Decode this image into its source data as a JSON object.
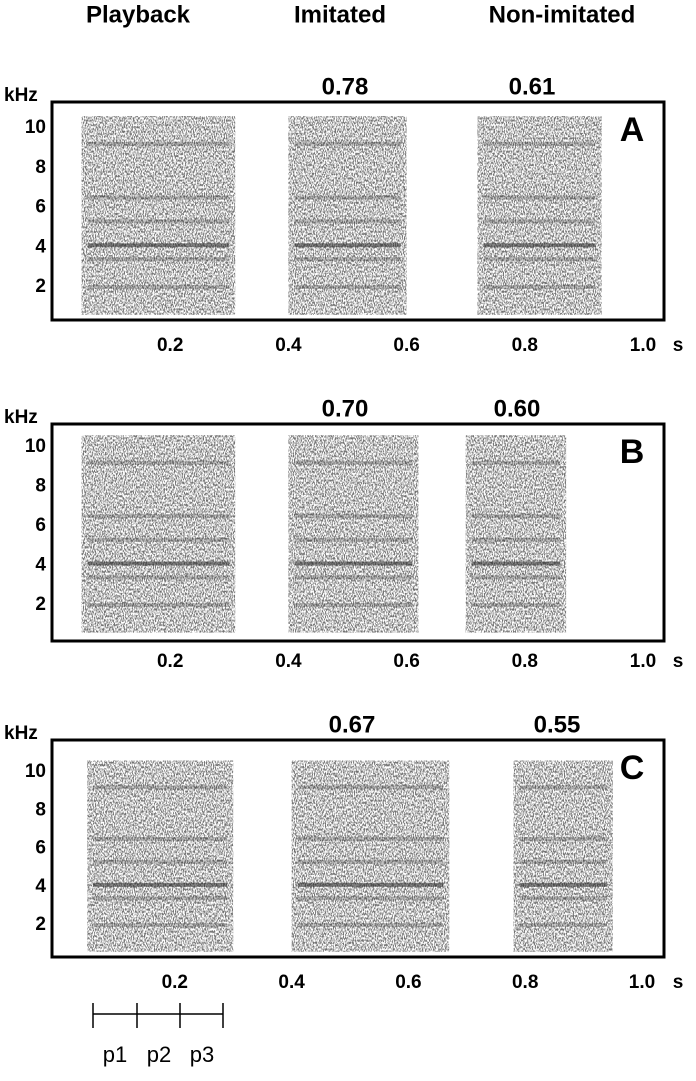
{
  "columns": [
    "Playback",
    "Imitated",
    "Non-imitated"
  ],
  "y_unit": "kHz",
  "x_unit": "s",
  "y_ticks": [
    "10",
    "8",
    "6",
    "4",
    "2"
  ],
  "x_ticks": [
    "0.2",
    "0.4",
    "0.6",
    "0.8",
    "1.0"
  ],
  "panels": [
    {
      "label": "A",
      "scores": [
        "0.78",
        "0.61"
      ]
    },
    {
      "label": "B",
      "scores": [
        "0.70",
        "0.60"
      ]
    },
    {
      "label": "C",
      "scores": [
        "0.67",
        "0.55"
      ]
    }
  ],
  "phrases": [
    "p1",
    "p2",
    "p3"
  ]
}
